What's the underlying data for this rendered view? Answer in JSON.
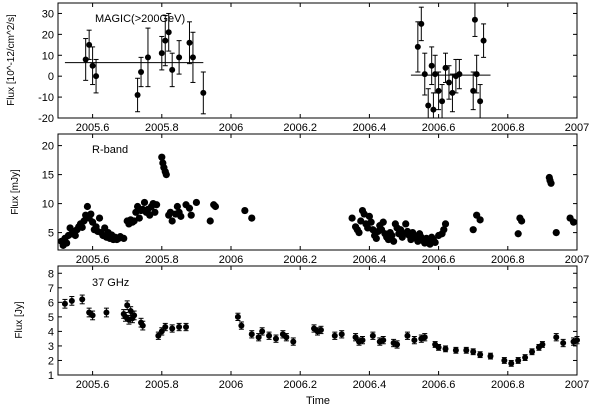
{
  "chart_data": [
    {
      "type": "scatter",
      "annotation": "MAGIC(>200GeV)",
      "ylabel": "Flux [10^-12/cm^2/s]",
      "xlim": [
        2005.5,
        2007.0
      ],
      "ylim": [
        -20,
        35
      ],
      "xticks": [
        "2005.6",
        "2005.8",
        "2006",
        "2006.2",
        "2006.4",
        "2006.6",
        "2006.8",
        "2007"
      ],
      "yticks": [
        "-20",
        "-10",
        "0",
        "10",
        "20",
        "30"
      ],
      "points": [
        {
          "x": 2005.58,
          "y": 8,
          "err": 10
        },
        {
          "x": 2005.59,
          "y": 15,
          "err": 7
        },
        {
          "x": 2005.6,
          "y": 5,
          "err": 9
        },
        {
          "x": 2005.61,
          "y": 0,
          "err": 8
        },
        {
          "x": 2005.73,
          "y": -9,
          "err": 8
        },
        {
          "x": 2005.74,
          "y": 2,
          "err": 7
        },
        {
          "x": 2005.76,
          "y": 9,
          "err": 14
        },
        {
          "x": 2005.8,
          "y": 11,
          "err": 8
        },
        {
          "x": 2005.81,
          "y": 17,
          "err": 12
        },
        {
          "x": 2005.82,
          "y": 21,
          "err": 9
        },
        {
          "x": 2005.83,
          "y": 3,
          "err": 8
        },
        {
          "x": 2005.85,
          "y": 9,
          "err": 8
        },
        {
          "x": 2005.88,
          "y": 16,
          "err": 10
        },
        {
          "x": 2005.89,
          "y": 9,
          "err": 12
        },
        {
          "x": 2005.92,
          "y": -8,
          "err": 10
        },
        {
          "x": 2006.54,
          "y": 14,
          "err": 12
        },
        {
          "x": 2006.55,
          "y": 25,
          "err": 8
        },
        {
          "x": 2006.56,
          "y": 1,
          "err": 10
        },
        {
          "x": 2006.57,
          "y": -14,
          "err": 8
        },
        {
          "x": 2006.58,
          "y": 5,
          "err": 9
        },
        {
          "x": 2006.585,
          "y": -16,
          "err": 8
        },
        {
          "x": 2006.59,
          "y": 1,
          "err": 9
        },
        {
          "x": 2006.6,
          "y": -7,
          "err": 9
        },
        {
          "x": 2006.61,
          "y": -12,
          "err": 8
        },
        {
          "x": 2006.62,
          "y": 4,
          "err": 7
        },
        {
          "x": 2006.63,
          "y": -3,
          "err": 8
        },
        {
          "x": 2006.64,
          "y": -8,
          "err": 9
        },
        {
          "x": 2006.65,
          "y": 0,
          "err": 8
        },
        {
          "x": 2006.66,
          "y": 1,
          "err": 7
        },
        {
          "x": 2006.7,
          "y": -7,
          "err": 9
        },
        {
          "x": 2006.705,
          "y": 27,
          "err": 8
        },
        {
          "x": 2006.71,
          "y": 1,
          "err": 9
        },
        {
          "x": 2006.72,
          "y": -12,
          "err": 8
        },
        {
          "x": 2006.73,
          "y": 17,
          "err": 8
        }
      ],
      "fit_segments": [
        {
          "x0": 2005.52,
          "x1": 2005.92,
          "y": 6.5
        },
        {
          "x0": 2006.52,
          "x1": 2006.75,
          "y": 0.5
        }
      ]
    },
    {
      "type": "scatter",
      "annotation": "R-band",
      "ylabel": "Flux [mJy]",
      "xlim": [
        2005.5,
        2007.0
      ],
      "ylim": [
        2,
        22
      ],
      "xticks": [
        "2005.6",
        "2005.8",
        "2006",
        "2006.2",
        "2006.4",
        "2006.6",
        "2006.8",
        "2007"
      ],
      "yticks": [
        "5",
        "10",
        "15",
        "20"
      ],
      "points": [
        {
          "x": 2005.51,
          "y": 3.5
        },
        {
          "x": 2005.515,
          "y": 2.8
        },
        {
          "x": 2005.52,
          "y": 4.0
        },
        {
          "x": 2005.525,
          "y": 3.2
        },
        {
          "x": 2005.53,
          "y": 4.5
        },
        {
          "x": 2005.535,
          "y": 5.8
        },
        {
          "x": 2005.54,
          "y": 4.8
        },
        {
          "x": 2005.545,
          "y": 5.2
        },
        {
          "x": 2005.55,
          "y": 4.5
        },
        {
          "x": 2005.555,
          "y": 5.5
        },
        {
          "x": 2005.56,
          "y": 6.0
        },
        {
          "x": 2005.565,
          "y": 6.5
        },
        {
          "x": 2005.57,
          "y": 5.9
        },
        {
          "x": 2005.575,
          "y": 7.0
        },
        {
          "x": 2005.58,
          "y": 8.0
        },
        {
          "x": 2005.585,
          "y": 9.5
        },
        {
          "x": 2005.59,
          "y": 7.5
        },
        {
          "x": 2005.595,
          "y": 8.2
        },
        {
          "x": 2005.6,
          "y": 6.8
        },
        {
          "x": 2005.605,
          "y": 5.5
        },
        {
          "x": 2005.61,
          "y": 6.0
        },
        {
          "x": 2005.615,
          "y": 5.2
        },
        {
          "x": 2005.62,
          "y": 7.5
        },
        {
          "x": 2005.625,
          "y": 5.0
        },
        {
          "x": 2005.63,
          "y": 4.5
        },
        {
          "x": 2005.635,
          "y": 5.8
        },
        {
          "x": 2005.64,
          "y": 4.2
        },
        {
          "x": 2005.645,
          "y": 5.0
        },
        {
          "x": 2005.65,
          "y": 4.0
        },
        {
          "x": 2005.655,
          "y": 4.6
        },
        {
          "x": 2005.66,
          "y": 3.8
        },
        {
          "x": 2005.665,
          "y": 4.2
        },
        {
          "x": 2005.67,
          "y": 3.8
        },
        {
          "x": 2005.675,
          "y": 4.0
        },
        {
          "x": 2005.68,
          "y": 4.3
        },
        {
          "x": 2005.69,
          "y": 4.0
        },
        {
          "x": 2005.7,
          "y": 7.0
        },
        {
          "x": 2005.705,
          "y": 6.5
        },
        {
          "x": 2005.71,
          "y": 7.2
        },
        {
          "x": 2005.715,
          "y": 6.8
        },
        {
          "x": 2005.72,
          "y": 7.0
        },
        {
          "x": 2005.725,
          "y": 8.5
        },
        {
          "x": 2005.73,
          "y": 9.5
        },
        {
          "x": 2005.735,
          "y": 7.5
        },
        {
          "x": 2005.74,
          "y": 8.8
        },
        {
          "x": 2005.745,
          "y": 9.0
        },
        {
          "x": 2005.75,
          "y": 10.2
        },
        {
          "x": 2005.755,
          "y": 8.5
        },
        {
          "x": 2005.76,
          "y": 9.0
        },
        {
          "x": 2005.765,
          "y": 8.0
        },
        {
          "x": 2005.77,
          "y": 9.5
        },
        {
          "x": 2005.775,
          "y": 10.0
        },
        {
          "x": 2005.78,
          "y": 8.5
        },
        {
          "x": 2005.785,
          "y": 9.8
        },
        {
          "x": 2005.8,
          "y": 18.0
        },
        {
          "x": 2005.803,
          "y": 17.0
        },
        {
          "x": 2005.806,
          "y": 16.2
        },
        {
          "x": 2005.81,
          "y": 15.5
        },
        {
          "x": 2005.813,
          "y": 15.0
        },
        {
          "x": 2005.82,
          "y": 8.0
        },
        {
          "x": 2005.825,
          "y": 8.5
        },
        {
          "x": 2005.83,
          "y": 7.0
        },
        {
          "x": 2005.84,
          "y": 8.2
        },
        {
          "x": 2005.845,
          "y": 9.5
        },
        {
          "x": 2005.85,
          "y": 8.5
        },
        {
          "x": 2005.855,
          "y": 7.8
        },
        {
          "x": 2005.87,
          "y": 9.8
        },
        {
          "x": 2005.88,
          "y": 9.2
        },
        {
          "x": 2005.885,
          "y": 8.0
        },
        {
          "x": 2005.9,
          "y": 10.2
        },
        {
          "x": 2005.94,
          "y": 7.0
        },
        {
          "x": 2005.95,
          "y": 9.8
        },
        {
          "x": 2005.955,
          "y": 9.5
        },
        {
          "x": 2006.04,
          "y": 8.8
        },
        {
          "x": 2006.06,
          "y": 7.5
        },
        {
          "x": 2006.35,
          "y": 7.5
        },
        {
          "x": 2006.36,
          "y": 6.0
        },
        {
          "x": 2006.365,
          "y": 5.5
        },
        {
          "x": 2006.37,
          "y": 5.0
        },
        {
          "x": 2006.375,
          "y": 7.0
        },
        {
          "x": 2006.38,
          "y": 8.8
        },
        {
          "x": 2006.385,
          "y": 8.2
        },
        {
          "x": 2006.39,
          "y": 6.5
        },
        {
          "x": 2006.395,
          "y": 5.8
        },
        {
          "x": 2006.4,
          "y": 7.8
        },
        {
          "x": 2006.405,
          "y": 6.8
        },
        {
          "x": 2006.41,
          "y": 5.5
        },
        {
          "x": 2006.415,
          "y": 4.5
        },
        {
          "x": 2006.42,
          "y": 4.0
        },
        {
          "x": 2006.425,
          "y": 5.2
        },
        {
          "x": 2006.43,
          "y": 6.2
        },
        {
          "x": 2006.435,
          "y": 5.5
        },
        {
          "x": 2006.44,
          "y": 6.8
        },
        {
          "x": 2006.445,
          "y": 4.8
        },
        {
          "x": 2006.45,
          "y": 4.2
        },
        {
          "x": 2006.455,
          "y": 3.8
        },
        {
          "x": 2006.46,
          "y": 5.0
        },
        {
          "x": 2006.465,
          "y": 4.5
        },
        {
          "x": 2006.47,
          "y": 3.5
        },
        {
          "x": 2006.475,
          "y": 6.5
        },
        {
          "x": 2006.48,
          "y": 5.8
        },
        {
          "x": 2006.485,
          "y": 4.8
        },
        {
          "x": 2006.49,
          "y": 5.5
        },
        {
          "x": 2006.495,
          "y": 4.2
        },
        {
          "x": 2006.5,
          "y": 4.8
        },
        {
          "x": 2006.505,
          "y": 6.5
        },
        {
          "x": 2006.51,
          "y": 5.2
        },
        {
          "x": 2006.515,
          "y": 4.5
        },
        {
          "x": 2006.52,
          "y": 3.8
        },
        {
          "x": 2006.525,
          "y": 5.0
        },
        {
          "x": 2006.53,
          "y": 4.5
        },
        {
          "x": 2006.535,
          "y": 4.0
        },
        {
          "x": 2006.54,
          "y": 3.5
        },
        {
          "x": 2006.545,
          "y": 4.8
        },
        {
          "x": 2006.55,
          "y": 4.2
        },
        {
          "x": 2006.555,
          "y": 3.6
        },
        {
          "x": 2006.56,
          "y": 3.2
        },
        {
          "x": 2006.565,
          "y": 4.0
        },
        {
          "x": 2006.57,
          "y": 3.5
        },
        {
          "x": 2006.575,
          "y": 3.0
        },
        {
          "x": 2006.58,
          "y": 4.2
        },
        {
          "x": 2006.585,
          "y": 3.8
        },
        {
          "x": 2006.59,
          "y": 3.3
        },
        {
          "x": 2006.6,
          "y": 4.5
        },
        {
          "x": 2006.61,
          "y": 4.8
        },
        {
          "x": 2006.615,
          "y": 5.5
        },
        {
          "x": 2006.62,
          "y": 6.5
        },
        {
          "x": 2006.7,
          "y": 5.5
        },
        {
          "x": 2006.71,
          "y": 8.0
        },
        {
          "x": 2006.72,
          "y": 7.2
        },
        {
          "x": 2006.83,
          "y": 4.8
        },
        {
          "x": 2006.835,
          "y": 7.5
        },
        {
          "x": 2006.84,
          "y": 7.0
        },
        {
          "x": 2006.92,
          "y": 14.5
        },
        {
          "x": 2006.922,
          "y": 14.0
        },
        {
          "x": 2006.925,
          "y": 13.5
        },
        {
          "x": 2006.94,
          "y": 5.0
        },
        {
          "x": 2006.98,
          "y": 7.5
        },
        {
          "x": 2006.99,
          "y": 6.8
        }
      ]
    },
    {
      "type": "scatter",
      "annotation": "37 GHz",
      "ylabel": "Flux [Jy]",
      "xlabel": "Time",
      "xlim": [
        2005.5,
        2007.0
      ],
      "ylim": [
        1,
        8.5
      ],
      "xticks": [
        "2005.6",
        "2005.8",
        "2006",
        "2006.2",
        "2006.4",
        "2006.6",
        "2006.8",
        "2007"
      ],
      "yticks": [
        "1",
        "2",
        "3",
        "4",
        "5",
        "6",
        "7",
        "8"
      ],
      "points": [
        {
          "x": 2005.52,
          "y": 5.9,
          "err": 0.3
        },
        {
          "x": 2005.54,
          "y": 6.1,
          "err": 0.3
        },
        {
          "x": 2005.57,
          "y": 6.2,
          "err": 0.3
        },
        {
          "x": 2005.59,
          "y": 5.3,
          "err": 0.3
        },
        {
          "x": 2005.6,
          "y": 5.1,
          "err": 0.3
        },
        {
          "x": 2005.64,
          "y": 5.3,
          "err": 0.3
        },
        {
          "x": 2005.69,
          "y": 5.2,
          "err": 0.3
        },
        {
          "x": 2005.695,
          "y": 5.0,
          "err": 0.3
        },
        {
          "x": 2005.7,
          "y": 5.8,
          "err": 0.3
        },
        {
          "x": 2005.705,
          "y": 4.8,
          "err": 0.3
        },
        {
          "x": 2005.71,
          "y": 5.4,
          "err": 0.3
        },
        {
          "x": 2005.715,
          "y": 4.9,
          "err": 0.3
        },
        {
          "x": 2005.72,
          "y": 5.1,
          "err": 0.3
        },
        {
          "x": 2005.74,
          "y": 4.6,
          "err": 0.3
        },
        {
          "x": 2005.745,
          "y": 4.4,
          "err": 0.3
        },
        {
          "x": 2005.79,
          "y": 3.7,
          "err": 0.25
        },
        {
          "x": 2005.8,
          "y": 4.0,
          "err": 0.25
        },
        {
          "x": 2005.81,
          "y": 4.3,
          "err": 0.25
        },
        {
          "x": 2005.83,
          "y": 4.2,
          "err": 0.25
        },
        {
          "x": 2005.85,
          "y": 4.3,
          "err": 0.25
        },
        {
          "x": 2005.87,
          "y": 4.3,
          "err": 0.25
        },
        {
          "x": 2006.02,
          "y": 5.0,
          "err": 0.25
        },
        {
          "x": 2006.03,
          "y": 4.4,
          "err": 0.25
        },
        {
          "x": 2006.06,
          "y": 3.8,
          "err": 0.25
        },
        {
          "x": 2006.08,
          "y": 3.6,
          "err": 0.25
        },
        {
          "x": 2006.09,
          "y": 4.0,
          "err": 0.25
        },
        {
          "x": 2006.11,
          "y": 3.7,
          "err": 0.25
        },
        {
          "x": 2006.13,
          "y": 3.5,
          "err": 0.25
        },
        {
          "x": 2006.15,
          "y": 3.8,
          "err": 0.25
        },
        {
          "x": 2006.16,
          "y": 3.6,
          "err": 0.25
        },
        {
          "x": 2006.18,
          "y": 3.3,
          "err": 0.25
        },
        {
          "x": 2006.24,
          "y": 4.2,
          "err": 0.25
        },
        {
          "x": 2006.25,
          "y": 4.0,
          "err": 0.25
        },
        {
          "x": 2006.26,
          "y": 4.1,
          "err": 0.25
        },
        {
          "x": 2006.3,
          "y": 3.7,
          "err": 0.25
        },
        {
          "x": 2006.32,
          "y": 3.8,
          "err": 0.25
        },
        {
          "x": 2006.36,
          "y": 3.6,
          "err": 0.25
        },
        {
          "x": 2006.37,
          "y": 3.3,
          "err": 0.25
        },
        {
          "x": 2006.38,
          "y": 3.4,
          "err": 0.25
        },
        {
          "x": 2006.41,
          "y": 3.7,
          "err": 0.25
        },
        {
          "x": 2006.43,
          "y": 3.3,
          "err": 0.25
        },
        {
          "x": 2006.44,
          "y": 3.4,
          "err": 0.25
        },
        {
          "x": 2006.47,
          "y": 3.2,
          "err": 0.25
        },
        {
          "x": 2006.48,
          "y": 3.1,
          "err": 0.25
        },
        {
          "x": 2006.51,
          "y": 3.7,
          "err": 0.25
        },
        {
          "x": 2006.53,
          "y": 3.4,
          "err": 0.25
        },
        {
          "x": 2006.55,
          "y": 3.5,
          "err": 0.25
        },
        {
          "x": 2006.56,
          "y": 3.6,
          "err": 0.25
        },
        {
          "x": 2006.59,
          "y": 3.1,
          "err": 0.2
        },
        {
          "x": 2006.6,
          "y": 2.9,
          "err": 0.2
        },
        {
          "x": 2006.62,
          "y": 2.8,
          "err": 0.2
        },
        {
          "x": 2006.65,
          "y": 2.7,
          "err": 0.2
        },
        {
          "x": 2006.68,
          "y": 2.7,
          "err": 0.2
        },
        {
          "x": 2006.7,
          "y": 2.6,
          "err": 0.2
        },
        {
          "x": 2006.72,
          "y": 2.4,
          "err": 0.2
        },
        {
          "x": 2006.75,
          "y": 2.3,
          "err": 0.2
        },
        {
          "x": 2006.79,
          "y": 2.0,
          "err": 0.2
        },
        {
          "x": 2006.81,
          "y": 1.8,
          "err": 0.2
        },
        {
          "x": 2006.83,
          "y": 2.0,
          "err": 0.2
        },
        {
          "x": 2006.85,
          "y": 2.2,
          "err": 0.2
        },
        {
          "x": 2006.87,
          "y": 2.6,
          "err": 0.2
        },
        {
          "x": 2006.89,
          "y": 2.9,
          "err": 0.2
        },
        {
          "x": 2006.9,
          "y": 3.1,
          "err": 0.2
        },
        {
          "x": 2006.94,
          "y": 3.6,
          "err": 0.25
        },
        {
          "x": 2006.96,
          "y": 3.2,
          "err": 0.25
        },
        {
          "x": 2006.99,
          "y": 3.3,
          "err": 0.25
        },
        {
          "x": 2007.0,
          "y": 3.4,
          "err": 0.25
        }
      ]
    }
  ]
}
